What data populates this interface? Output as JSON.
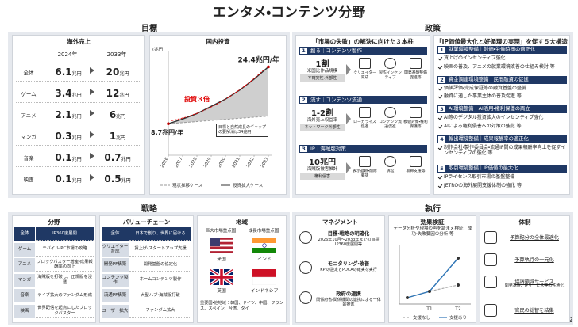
{
  "title": "エンタメ・コンテンツ分野",
  "sections": {
    "goal": "目標",
    "policy": "政策",
    "strategy": "戦略",
    "execution": "執行"
  },
  "overseas_sales": {
    "title": "海外売上",
    "columns": [
      "2024年",
      "2033年"
    ],
    "unit": "兆円",
    "rows": [
      {
        "label": "全体",
        "y2024": "6.1",
        "y2033": "20"
      },
      {
        "label": "ゲーム",
        "y2024": "3.4",
        "y2033": "12"
      },
      {
        "label": "アニメ",
        "y2024": "2.1",
        "y2033": "6"
      },
      {
        "label": "マンガ",
        "y2024": "0.3",
        "y2033": "1"
      },
      {
        "label": "音楽",
        "y2024": "0.1",
        "y2033": "0.7"
      },
      {
        "label": "映画",
        "y2024": "0.1",
        "y2033": "0.5"
      }
    ]
  },
  "domestic_investment": {
    "type": "line",
    "title": "国内投資",
    "unit_label": "(兆円)",
    "x": [
      2026,
      2027,
      2028,
      2029,
      2030,
      2031,
      2032,
      2033
    ],
    "xlim": [
      2026,
      2033
    ],
    "ylim": [
      0,
      28
    ],
    "series": [
      {
        "name": "現状推移ケース",
        "color": "#9a9a9a",
        "values": [
          8.7,
          9.0,
          9.3,
          9.6,
          9.9,
          10.2,
          10.5,
          10.8
        ]
      },
      {
        "name": "投資拡大ケース",
        "color": "#333333",
        "values": [
          8.7,
          10.0,
          11.5,
          13.5,
          15.5,
          18.0,
          21.0,
          24.4
        ]
      }
    ],
    "annotations": {
      "end": "24.4兆円/年",
      "start": "8.7兆円/年",
      "multiplier": "投資３倍",
      "gap_note": "目標と自然成長のギャップの要解消は34兆円"
    }
  },
  "pillars": {
    "title": "「市場の失敗」の解決に向けた３本柱",
    "items": [
      {
        "number": "1",
        "heading": "創る｜コンテンツ製作",
        "stat": "1割",
        "stat_label": "米国比作品規模",
        "cause": "不確実性・外部性",
        "measures": [
          "クリエイター育成",
          "製作インセンティブ",
          "開発基盤整備促進等"
        ]
      },
      {
        "number": "2",
        "heading": "流す｜コンテンツ流通",
        "stat": "1-2割",
        "stat_label": "海外売上収益率",
        "cause": "ネットワーク外部性",
        "measures": [
          "ローカライズ促進",
          "コンテンツ流通促進",
          "模倣対策・権利保護等"
        ]
      },
      {
        "number": "3",
        "heading": "IP｜海賊版対策",
        "stat": "10兆円",
        "stat_label": "海賊版被害推計",
        "cause": "権利侵害",
        "measures": [
          "表示追跡・削除要請",
          "訴訟",
          "取締支援等"
        ]
      }
    ]
  },
  "reforms": {
    "title": "「IP価値最大化と好循環の実現」を促す５大構造改革",
    "items": [
      {
        "number": "1",
        "heading": "就業環境整備｜対価・労働時間の適正化",
        "points": [
          "賃上げのインセンティブ強化",
          "映画の普及、アニメの就業環境改善の仕組み検討 等"
        ]
      },
      {
        "number": "2",
        "heading": "資金調達環境整備｜民間融資の促進",
        "points": [
          "価値評価・完成保証等の融資基盤の整備",
          "融資に適した事業主体の普及促進 等"
        ]
      },
      {
        "number": "3",
        "heading": "AI環境整備｜AI活用・権利保護の両立",
        "points": [
          "AI等のデジタル投資拡大のインセンティブ強化",
          "AIによる権利侵害への対策の強化 等"
        ]
      },
      {
        "number": "4",
        "heading": "輸出環境整備｜成果報酬率の適正化",
        "points": [
          "制作会社・製作委員会・流通IP間の成果報酬率向上を促すインセンティブの強化 等"
        ]
      },
      {
        "number": "5",
        "heading": "取引環境整備｜IP価値の最大化",
        "points": [
          "IPライセンス取引市場の基盤整備",
          "JETROの海外展開支援体制の強化 等"
        ]
      }
    ]
  },
  "fields": {
    "title": "分野",
    "rows": [
      [
        "全体",
        "IP360度展開"
      ],
      [
        "ゲーム",
        "モバイル・PC市場の攻略"
      ],
      [
        "アニメ",
        "ブロックバスター増産・成果報酬率の向上"
      ],
      [
        "マンガ",
        "海賊版を打破し、正規版を浸透"
      ],
      [
        "音楽",
        "ライブ拡大のファンダム形成"
      ],
      [
        "映画",
        "世界配信を起点にしたブロックバスター"
      ]
    ]
  },
  "value_chain": {
    "title": "バリューチェーン",
    "rows": [
      [
        "全体",
        "日本で創り、世界に届ける"
      ],
      [
        "クリエイター育成",
        "賃上げ・スタートアップ支援"
      ],
      [
        "開発PF構築",
        "開発基盤の協定化"
      ],
      [
        "コンテンツ製作",
        "ホームコンテンツ製作"
      ],
      [
        "流通PF構築",
        "大型ハブ・海賊版打破"
      ],
      [
        "ユーザー拡大",
        "ファンダム拡大"
      ]
    ]
  },
  "regions": {
    "title": "地域",
    "columns": [
      "巨大市場重点国",
      "成長市場重点国"
    ],
    "countries": [
      "米国",
      "インド",
      "英国",
      "インドネシア"
    ],
    "others": "重要国・他地域：韓国、ドイツ、中国、フランス、スペイン、台湾、タイ"
  },
  "management": {
    "title": "マネジメント",
    "items": [
      {
        "heading": "目標・戦略の明確化",
        "text": "2026年10月〜2033年までの目標 IP360度展開等"
      },
      {
        "heading": "モニタリング・改善",
        "text": "KPIの設定とPDCAの確実な実行"
      },
      {
        "heading": "政府の連携",
        "text": "関係府省・関係機関の連携による一体的推進"
      }
    ]
  },
  "evaluation": {
    "title": "効果検証",
    "text": "データ分析や現場の声を踏まえ検証、成功・失敗要因の分析 等",
    "x": [
      "T1",
      "T2"
    ],
    "legend": [
      "支援なし",
      "支援あり"
    ]
  },
  "organization": {
    "title": "体制",
    "items": [
      "予算配分の全体最適化",
      "予算執行の一元化",
      "協調領域サービス",
      "官民の総智を結集"
    ],
    "note": "開発基盤、IPサービス等の共通化"
  },
  "page_number": "2"
}
